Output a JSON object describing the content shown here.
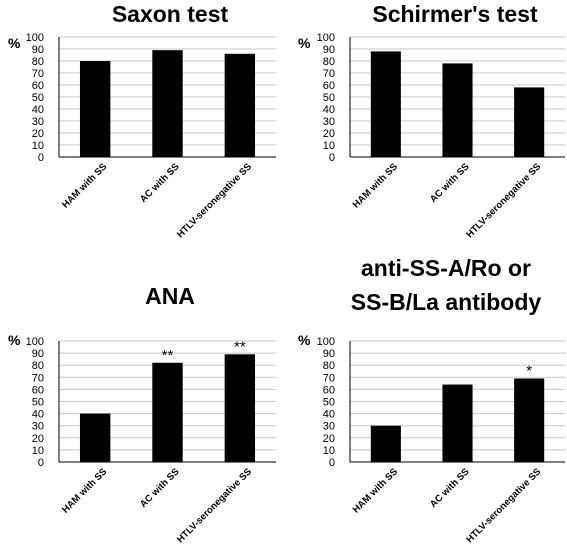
{
  "figure": {
    "panels": [
      {
        "title": [
          "Saxon test"
        ]
      },
      {
        "title": [
          "Schirmer's test"
        ]
      },
      {
        "title": [
          "ANA"
        ]
      },
      {
        "title": [
          "anti-SS-A/Ro or",
          "SS-B/La antibody"
        ]
      }
    ]
  },
  "chart_data": [
    {
      "type": "bar",
      "title": "Saxon test",
      "ylabel": "%",
      "categories": [
        "HAM with SS",
        "AC with SS",
        "HTLV-seronegative SS"
      ],
      "values": [
        80,
        89,
        86
      ],
      "annotations": [
        "",
        "",
        ""
      ],
      "ylim": [
        0,
        100
      ],
      "yticks": [
        0,
        10,
        20,
        30,
        40,
        50,
        60,
        70,
        80,
        90,
        100
      ],
      "grid": true,
      "bar_color": "#000000"
    },
    {
      "type": "bar",
      "title": "Schirmer's test",
      "ylabel": "%",
      "categories": [
        "HAM with SS",
        "AC with SS",
        "HTLV-seronegative SS"
      ],
      "values": [
        88,
        78,
        58
      ],
      "annotations": [
        "",
        "",
        ""
      ],
      "ylim": [
        0,
        100
      ],
      "yticks": [
        0,
        10,
        20,
        30,
        40,
        50,
        60,
        70,
        80,
        90,
        100
      ],
      "grid": true,
      "bar_color": "#000000"
    },
    {
      "type": "bar",
      "title": "ANA",
      "ylabel": "%",
      "categories": [
        "HAM with SS",
        "AC with SS",
        "HTLV-seronegative SS"
      ],
      "values": [
        40,
        82,
        89
      ],
      "annotations": [
        "",
        "**",
        "**"
      ],
      "ylim": [
        0,
        100
      ],
      "yticks": [
        0,
        10,
        20,
        30,
        40,
        50,
        60,
        70,
        80,
        90,
        100
      ],
      "grid": true,
      "bar_color": "#000000"
    },
    {
      "type": "bar",
      "title": "anti-SS-A/Ro or SS-B/La antibody",
      "ylabel": "%",
      "categories": [
        "HAM with SS",
        "AC with SS",
        "HTLV-seronegative SS"
      ],
      "values": [
        30,
        64,
        69
      ],
      "annotations": [
        "",
        "",
        "*"
      ],
      "ylim": [
        0,
        100
      ],
      "yticks": [
        0,
        10,
        20,
        30,
        40,
        50,
        60,
        70,
        80,
        90,
        100
      ],
      "grid": true,
      "bar_color": "#000000"
    }
  ]
}
